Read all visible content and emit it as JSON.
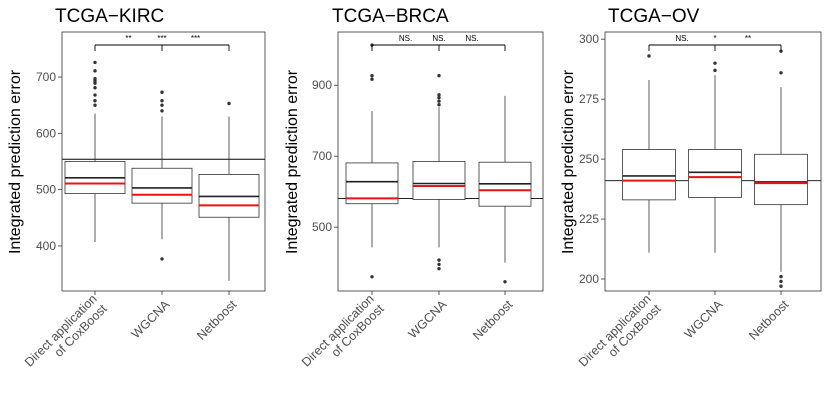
{
  "figure": {
    "y_axis_label": "Integrated prediction error"
  },
  "colors": {
    "median": "#222222",
    "mean": "#ee1111",
    "box": "#333333",
    "outlier": "#333333",
    "frame": "#333333"
  },
  "chart_data": [
    {
      "type": "boxplot",
      "title": "TCGA−KIRC",
      "ylabel": "Integrated prediction error",
      "categories": [
        "Direct application of CoxBoost",
        "WGCNA",
        "Netboost"
      ],
      "category_lines": [
        [
          "Direct application",
          "of CoxBoost"
        ],
        [
          "WGCNA"
        ],
        [
          "Netboost"
        ]
      ],
      "ylim": [
        320,
        780
      ],
      "yticks": [
        400,
        500,
        600,
        700
      ],
      "reference_line": 554,
      "boxes": [
        {
          "whisker_low": 407,
          "q1": 493,
          "median": 521,
          "q3": 550,
          "whisker_high": 635,
          "mean": 511,
          "outliers": [
            650,
            658,
            668,
            681,
            689,
            693,
            697,
            711,
            726
          ]
        },
        {
          "whisker_low": 412,
          "q1": 476,
          "median": 503,
          "q3": 538,
          "whisker_high": 630,
          "mean": 491,
          "outliers": [
            377,
            640,
            650,
            658,
            673
          ]
        },
        {
          "whisker_low": 338,
          "q1": 451,
          "median": 488,
          "q3": 527,
          "whisker_high": 630,
          "mean": 472,
          "outliers": [
            653
          ]
        }
      ],
      "comparisons": [
        {
          "label": "**",
          "from": 0,
          "to": 1
        },
        {
          "label": "***",
          "from": 0,
          "to": 2,
          "label_at": 1
        },
        {
          "label": "***",
          "from": 1,
          "to": 2
        }
      ]
    },
    {
      "type": "boxplot",
      "title": "TCGA−BRCA",
      "ylabel": "Integrated prediction error",
      "categories": [
        "Direct application of CoxBoost",
        "WGCNA",
        "Netboost"
      ],
      "category_lines": [
        [
          "Direct application",
          "of CoxBoost"
        ],
        [
          "WGCNA"
        ],
        [
          "Netboost"
        ]
      ],
      "ylim": [
        320,
        1050
      ],
      "yticks": [
        500,
        700,
        900
      ],
      "reference_line": 581,
      "boxes": [
        {
          "whisker_low": 443,
          "q1": 566,
          "median": 628,
          "q3": 681,
          "whisker_high": 827,
          "mean": 581,
          "outliers": [
            360,
            917,
            927,
            1013
          ]
        },
        {
          "whisker_low": 443,
          "q1": 578,
          "median": 623,
          "q3": 685,
          "whisker_high": 838,
          "mean": 616,
          "outliers": [
            383,
            395,
            407,
            845,
            855,
            865,
            873,
            927
          ]
        },
        {
          "whisker_low": 400,
          "q1": 559,
          "median": 622,
          "q3": 683,
          "whisker_high": 870,
          "mean": 604,
          "outliers": [
            346
          ]
        }
      ],
      "comparisons": [
        {
          "label": "NS.",
          "from": 0,
          "to": 1
        },
        {
          "label": "NS.",
          "from": 0,
          "to": 2,
          "label_at": 1
        },
        {
          "label": "NS.",
          "from": 1,
          "to": 2
        }
      ]
    },
    {
      "type": "boxplot",
      "title": "TCGA−OV",
      "ylabel": "Integrated prediction error",
      "categories": [
        "Direct application of CoxBoost",
        "WGCNA",
        "Netboost"
      ],
      "category_lines": [
        [
          "Direct application",
          "of CoxBoost"
        ],
        [
          "WGCNA"
        ],
        [
          "Netboost"
        ]
      ],
      "ylim": [
        195,
        303
      ],
      "yticks": [
        200,
        225,
        250,
        275,
        300
      ],
      "reference_line": 241,
      "boxes": [
        {
          "whisker_low": 211,
          "q1": 233,
          "median": 243,
          "q3": 254,
          "whisker_high": 283,
          "mean": 241,
          "outliers": [
            293
          ]
        },
        {
          "whisker_low": 211,
          "q1": 234,
          "median": 244.5,
          "q3": 254,
          "whisker_high": 285,
          "mean": 242.5,
          "outliers": [
            287,
            290
          ]
        },
        {
          "whisker_low": 203,
          "q1": 231,
          "median": 240.5,
          "q3": 252,
          "whisker_high": 280,
          "mean": 240,
          "outliers": [
            197,
            199,
            201,
            286,
            295
          ]
        }
      ],
      "comparisons": [
        {
          "label": "NS.",
          "from": 0,
          "to": 1
        },
        {
          "label": "*",
          "from": 0,
          "to": 2,
          "label_at": 1
        },
        {
          "label": "**",
          "from": 1,
          "to": 2
        }
      ]
    }
  ]
}
